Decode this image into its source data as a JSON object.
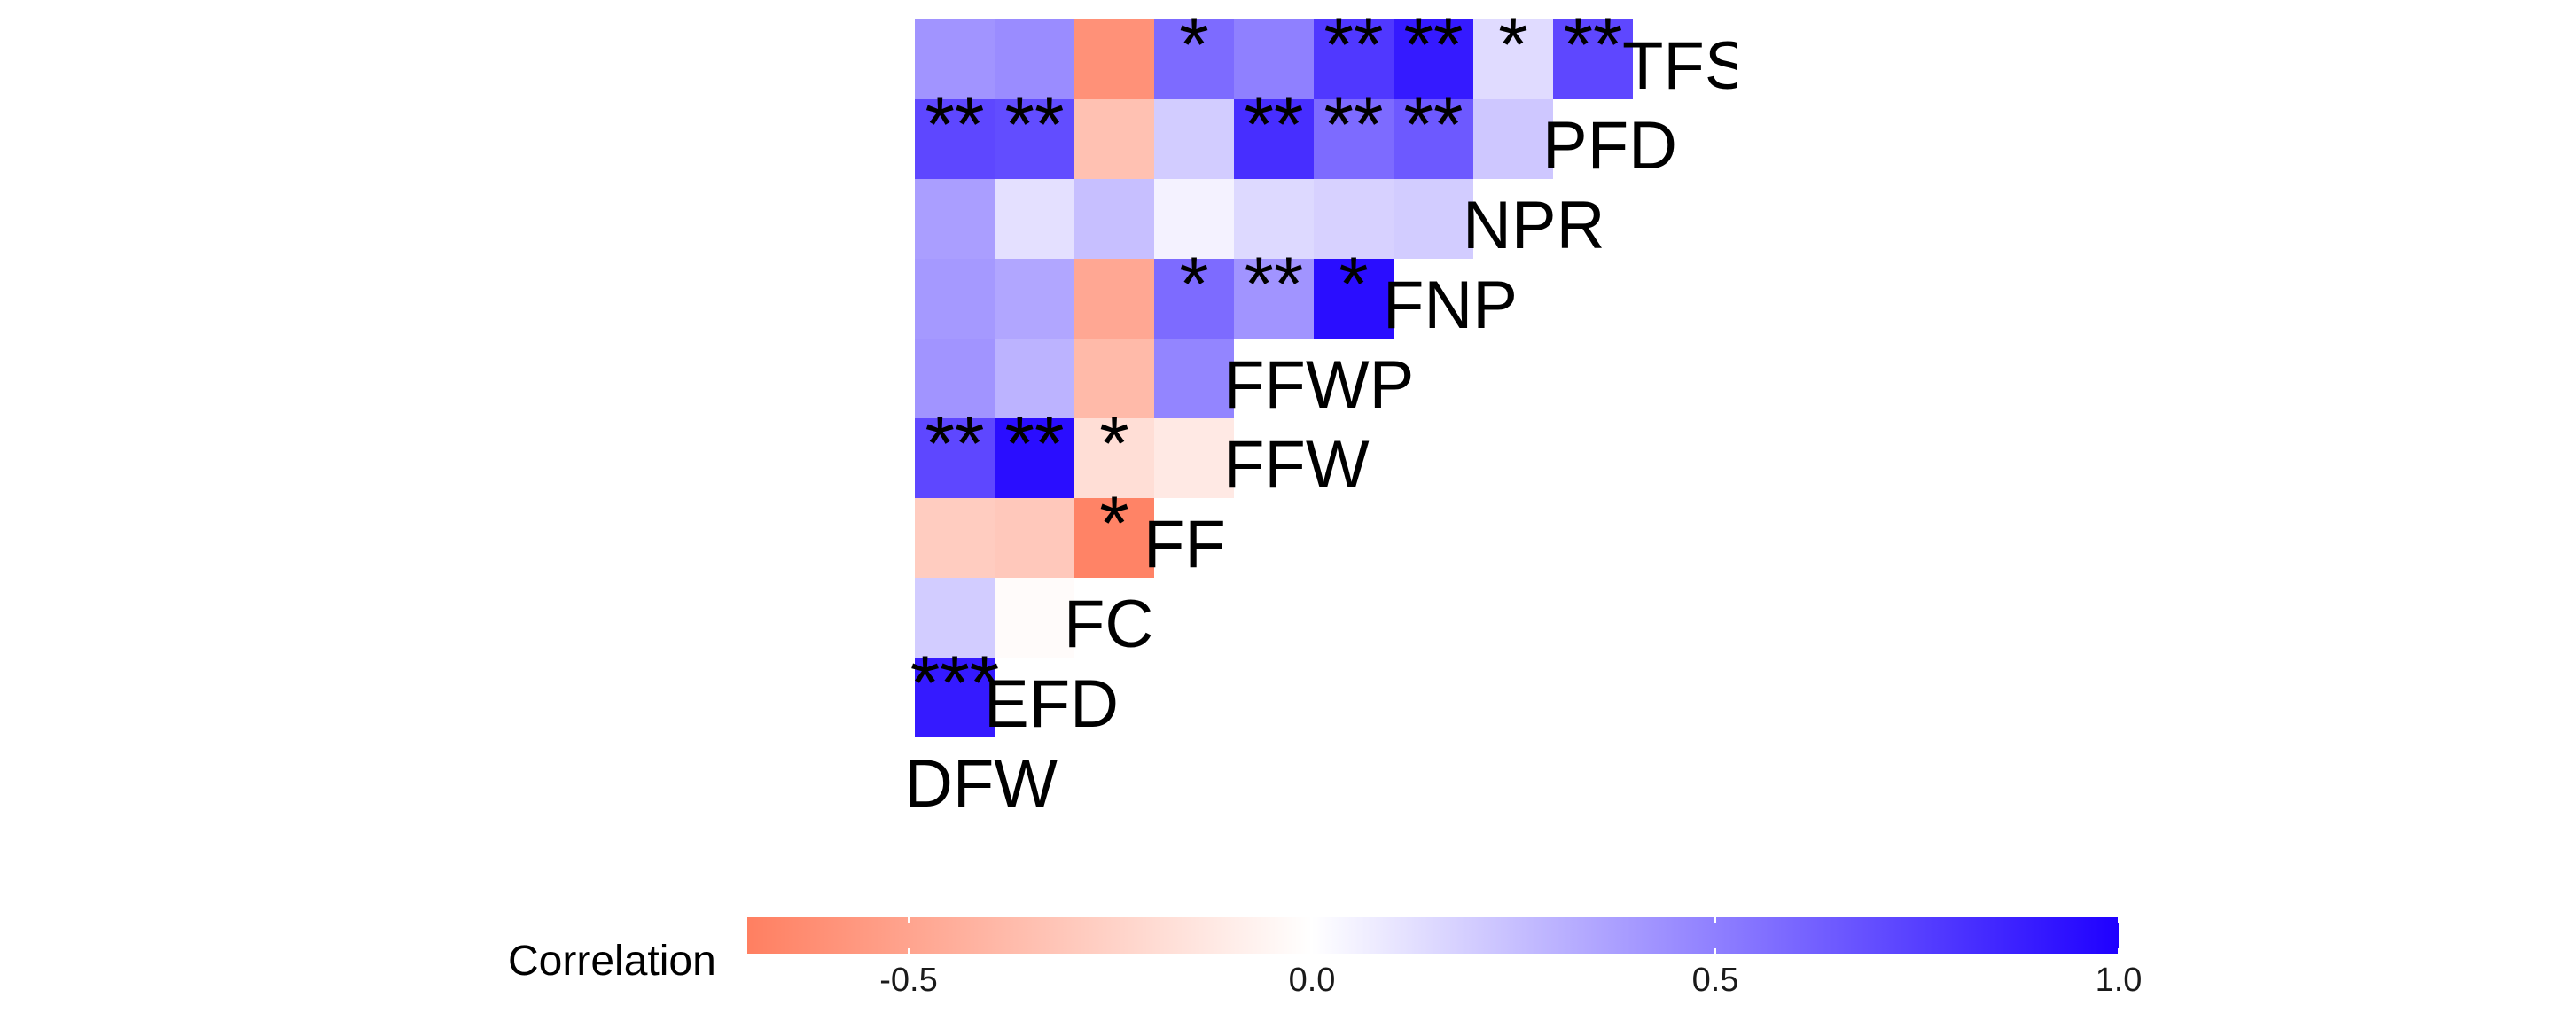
{
  "chart_data": {
    "type": "heatmap",
    "variables": [
      "DFW",
      "EFD",
      "FC",
      "FF",
      "FFW",
      "FFWP",
      "FNP",
      "NPR",
      "PFD",
      "TFS"
    ],
    "rows": [
      {
        "label": "TFS",
        "values": [
          0.42,
          0.45,
          -0.6,
          0.58,
          0.5,
          0.78,
          0.9,
          0.14,
          0.72
        ],
        "stars": [
          "",
          "",
          "",
          "*",
          "",
          "**",
          "**",
          "*",
          "**"
        ]
      },
      {
        "label": "PFD",
        "values": [
          0.72,
          0.7,
          -0.34,
          0.2,
          0.82,
          0.58,
          0.65,
          0.22
        ],
        "stars": [
          "**",
          "**",
          "",
          "",
          "**",
          "**",
          "**",
          ""
        ]
      },
      {
        "label": "NPR",
        "values": [
          0.38,
          0.12,
          0.25,
          0.05,
          0.15,
          0.18,
          0.2
        ],
        "stars": [
          "",
          "",
          "",
          "",
          "",
          "",
          ""
        ]
      },
      {
        "label": "FNP",
        "values": [
          0.4,
          0.35,
          -0.48,
          0.58,
          0.42,
          0.95
        ],
        "stars": [
          "",
          "",
          "",
          "*",
          "**",
          "*"
        ]
      },
      {
        "label": "FFWP",
        "values": [
          0.42,
          0.3,
          -0.38,
          0.48
        ],
        "stars": [
          "",
          "",
          "",
          ""
        ]
      },
      {
        "label": "FFW",
        "values": [
          0.72,
          0.95,
          -0.18,
          -0.12
        ],
        "stars": [
          "**",
          "**",
          "*",
          ""
        ]
      },
      {
        "label": "FF",
        "values": [
          -0.28,
          -0.3,
          -0.68
        ],
        "stars": [
          "",
          "",
          "*"
        ]
      },
      {
        "label": "FC",
        "values": [
          0.2,
          -0.02
        ],
        "stars": [
          "",
          ""
        ]
      },
      {
        "label": "EFD",
        "values": [
          0.9
        ],
        "stars": [
          "***"
        ]
      },
      {
        "label": "DFW",
        "values": [],
        "stars": []
      }
    ],
    "colorbar": {
      "title": "Correlation",
      "range": [
        -0.7,
        1.0
      ],
      "ticks": [
        "-0.5",
        "0.0",
        "0.5",
        "1.0"
      ],
      "tick_values": [
        -0.5,
        0.0,
        0.5,
        1.0
      ],
      "low_color": "#ff7f61",
      "mid_color": "#ffffff",
      "high_color": "#1f00ff"
    }
  }
}
